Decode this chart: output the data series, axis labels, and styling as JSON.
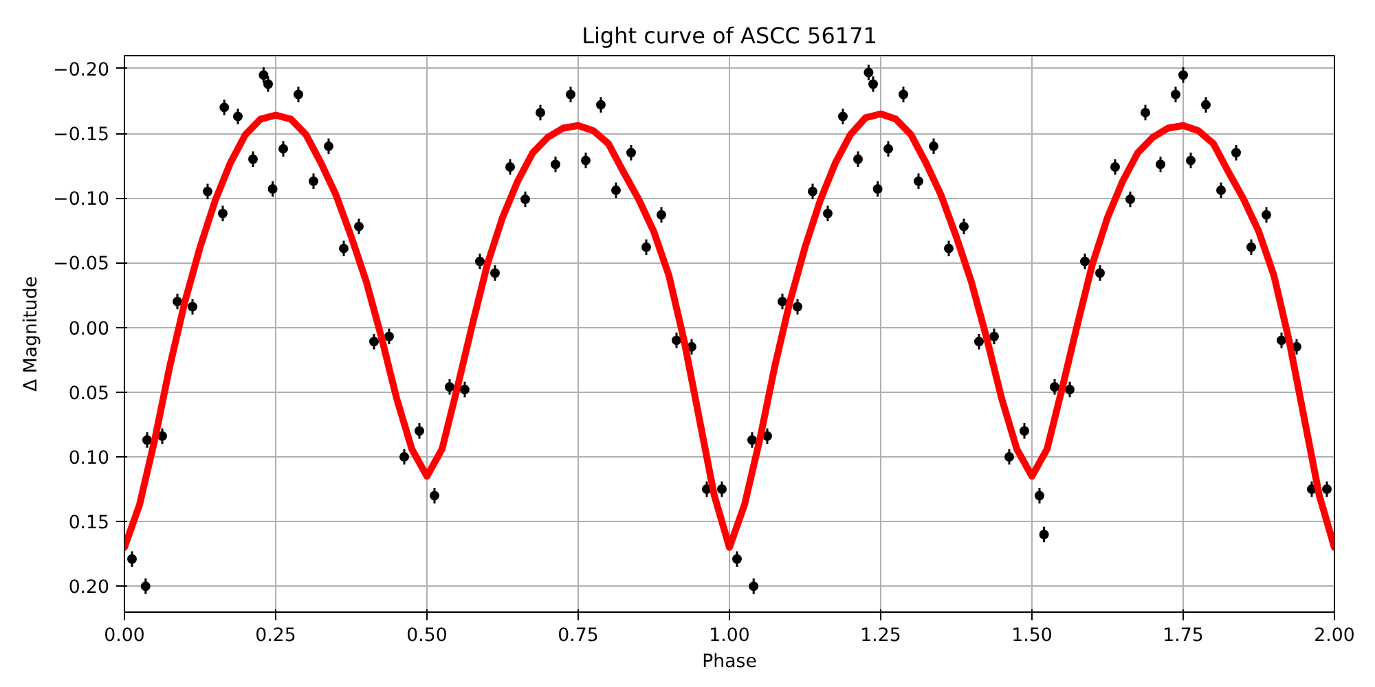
{
  "chart_data": {
    "type": "scatter",
    "title": "Light curve of ASCC 56171",
    "xlabel": "Phase",
    "ylabel": "Δ Magnitude",
    "xlim": [
      0,
      2
    ],
    "ylim": [
      0.22,
      -0.21
    ],
    "xticks": [
      {
        "value": 0,
        "label": "0.00"
      },
      {
        "value": 0.25,
        "label": "0.25"
      },
      {
        "value": 0.5,
        "label": "0.50"
      },
      {
        "value": 0.75,
        "label": "0.75"
      },
      {
        "value": 1,
        "label": "1.00"
      },
      {
        "value": 1.25,
        "label": "1.25"
      },
      {
        "value": 1.5,
        "label": "1.50"
      },
      {
        "value": 1.75,
        "label": "1.75"
      },
      {
        "value": 2,
        "label": "2.00"
      }
    ],
    "yticks": [
      {
        "value": -0.2,
        "label": "−0.20"
      },
      {
        "value": -0.15,
        "label": "−0.15"
      },
      {
        "value": -0.1,
        "label": "−0.10"
      },
      {
        "value": -0.05,
        "label": "−0.05"
      },
      {
        "value": 0,
        "label": "0.00"
      },
      {
        "value": 0.05,
        "label": "0.05"
      },
      {
        "value": 0.1,
        "label": "0.10"
      },
      {
        "value": 0.15,
        "label": "0.15"
      },
      {
        "value": 0.2,
        "label": "0.20"
      }
    ],
    "grid": true,
    "series": [
      {
        "marker": "circle",
        "color": "#000000",
        "x": [
          0.0125,
          0.0375,
          0.0625,
          0.0875,
          0.1125,
          0.1375,
          0.1625,
          0.1875,
          0.2125,
          0.2375,
          0.2625,
          0.2875,
          0.3125,
          0.3375,
          0.3625,
          0.3875,
          0.4125,
          0.4375,
          0.4625,
          0.4875,
          0.5125,
          0.5375,
          0.5625,
          0.5875,
          0.6125,
          0.6375,
          0.6625,
          0.6875,
          0.7125,
          0.7375,
          0.7625,
          0.7875,
          0.8125,
          0.8375,
          0.8625,
          0.8875,
          0.9125,
          0.9375,
          0.9625,
          0.9875,
          1.0125,
          1.0375,
          1.0625,
          1.0875,
          1.1125,
          1.1375,
          1.1625,
          1.1875,
          1.2125,
          1.2375,
          1.2625,
          1.2875,
          1.3125,
          1.3375,
          1.3625,
          1.3875,
          1.4125,
          1.4375,
          1.4625,
          1.4875,
          1.5125,
          1.5375,
          1.5625,
          1.5875,
          1.6125,
          1.6375,
          1.6625,
          1.6875,
          1.7125,
          1.7375,
          1.7625,
          1.7875,
          1.8125,
          1.8375,
          1.8625,
          1.8875,
          1.9125,
          1.9375,
          1.9625,
          1.9875,
          0.23,
          0.165,
          0.245,
          0.035,
          1.23,
          1.245,
          1.04,
          1.52,
          1.75
        ],
        "values": [
          0.179,
          0.087,
          0.084,
          -0.02,
          -0.016,
          -0.105,
          -0.088,
          -0.163,
          -0.13,
          -0.188,
          -0.138,
          -0.18,
          -0.113,
          -0.14,
          -0.061,
          -0.078,
          0.011,
          0.007,
          0.1,
          0.08,
          0.13,
          0.046,
          0.048,
          -0.051,
          -0.042,
          -0.124,
          -0.099,
          -0.166,
          -0.126,
          -0.18,
          -0.129,
          -0.172,
          -0.106,
          -0.135,
          -0.062,
          -0.087,
          0.01,
          0.015,
          0.125,
          0.125,
          0.179,
          0.087,
          0.084,
          -0.02,
          -0.016,
          -0.105,
          -0.088,
          -0.163,
          -0.13,
          -0.188,
          -0.138,
          -0.18,
          -0.113,
          -0.14,
          -0.061,
          -0.078,
          0.011,
          0.007,
          0.1,
          0.08,
          0.13,
          0.046,
          0.048,
          -0.051,
          -0.042,
          -0.124,
          -0.099,
          -0.166,
          -0.126,
          -0.18,
          -0.129,
          -0.172,
          -0.106,
          -0.135,
          -0.062,
          -0.087,
          0.01,
          0.015,
          0.125,
          0.125,
          -0.195,
          -0.17,
          -0.107,
          0.2,
          -0.197,
          -0.107,
          0.2,
          0.16,
          -0.195
        ],
        "errors": [
          0.006,
          0.006,
          0.006,
          0.006,
          0.006,
          0.006,
          0.006,
          0.006,
          0.006,
          0.006,
          0.006,
          0.006,
          0.006,
          0.006,
          0.006,
          0.006,
          0.006,
          0.006,
          0.006,
          0.006,
          0.006,
          0.006,
          0.006,
          0.006,
          0.006,
          0.006,
          0.006,
          0.006,
          0.006,
          0.006,
          0.006,
          0.006,
          0.006,
          0.006,
          0.006,
          0.006,
          0.006,
          0.006,
          0.006,
          0.006,
          0.006,
          0.006,
          0.006,
          0.006,
          0.006,
          0.006,
          0.006,
          0.006,
          0.006,
          0.006,
          0.006,
          0.006,
          0.006,
          0.006,
          0.006,
          0.006,
          0.006,
          0.006,
          0.006,
          0.006,
          0.006,
          0.006,
          0.006,
          0.006,
          0.006,
          0.006,
          0.006,
          0.006,
          0.006,
          0.006,
          0.006,
          0.006,
          0.006,
          0.006,
          0.006,
          0.006,
          0.006,
          0.006,
          0.006,
          0.006,
          0.006,
          0.006,
          0.006,
          0.006,
          0.006,
          0.006,
          0.006,
          0.006,
          0.006
        ]
      },
      {
        "type": "line",
        "color": "#ff0000",
        "x": [
          0,
          0.025,
          0.05,
          0.075,
          0.1,
          0.125,
          0.15,
          0.175,
          0.2,
          0.225,
          0.25,
          0.275,
          0.3,
          0.325,
          0.35,
          0.375,
          0.4,
          0.425,
          0.45,
          0.475,
          0.5,
          0.525,
          0.55,
          0.575,
          0.6,
          0.625,
          0.65,
          0.675,
          0.7,
          0.725,
          0.75,
          0.775,
          0.8,
          0.825,
          0.85,
          0.875,
          0.9,
          0.925,
          0.95,
          0.975,
          1,
          1.025,
          1.05,
          1.075,
          1.1,
          1.125,
          1.15,
          1.175,
          1.2,
          1.225,
          1.25,
          1.275,
          1.3,
          1.325,
          1.35,
          1.375,
          1.4,
          1.425,
          1.45,
          1.475,
          1.5,
          1.525,
          1.55,
          1.575,
          1.6,
          1.625,
          1.65,
          1.675,
          1.7,
          1.725,
          1.75,
          1.775,
          1.8,
          1.825,
          1.85,
          1.875,
          1.9,
          1.925,
          1.95,
          1.975,
          2
        ],
        "values": [
          0.17,
          0.137,
          0.087,
          0.03,
          -0.02,
          -0.062,
          -0.098,
          -0.127,
          -0.149,
          -0.161,
          -0.164,
          -0.161,
          -0.149,
          -0.127,
          -0.102,
          -0.07,
          -0.035,
          0.008,
          0.055,
          0.094,
          0.115,
          0.094,
          0.047,
          -0.002,
          -0.049,
          -0.085,
          -0.113,
          -0.135,
          -0.147,
          -0.154,
          -0.156,
          -0.152,
          -0.142,
          -0.12,
          -0.099,
          -0.074,
          -0.04,
          0.01,
          0.07,
          0.13,
          0.17,
          0.137,
          0.087,
          0.03,
          -0.02,
          -0.062,
          -0.098,
          -0.127,
          -0.149,
          -0.162,
          -0.165,
          -0.161,
          -0.149,
          -0.127,
          -0.102,
          -0.07,
          -0.035,
          0.008,
          0.055,
          0.094,
          0.115,
          0.094,
          0.047,
          -0.002,
          -0.049,
          -0.085,
          -0.113,
          -0.135,
          -0.147,
          -0.154,
          -0.156,
          -0.152,
          -0.142,
          -0.12,
          -0.099,
          -0.074,
          -0.04,
          0.01,
          0.07,
          0.13,
          0.17
        ]
      }
    ]
  }
}
